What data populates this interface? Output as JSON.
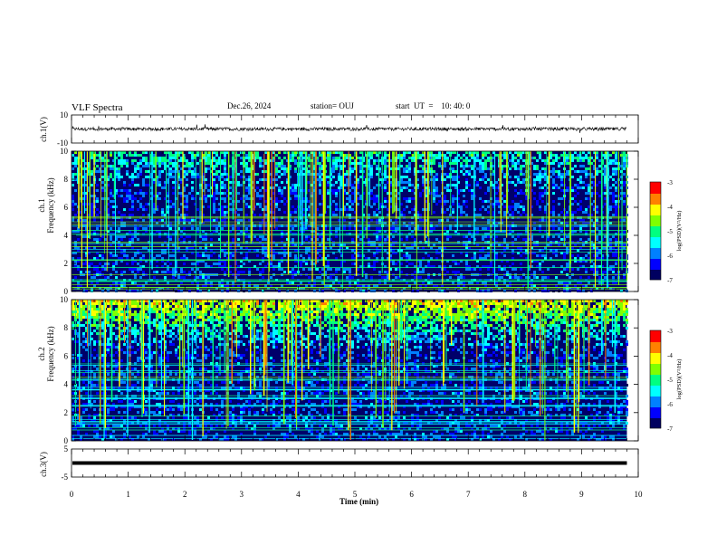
{
  "header": {
    "title": "VLF Spectra",
    "date": "Dec.26, 2024",
    "station": "station= OUJ",
    "start_ut": "start  UT  =    10: 40: 0"
  },
  "colors": {
    "colormap": [
      "#000060",
      "#0000ff",
      "#0080ff",
      "#00ffff",
      "#00ff80",
      "#80ff00",
      "#ffff00",
      "#ff8000",
      "#ff0000",
      "#ffffff"
    ]
  },
  "chart_data": [
    {
      "type": "line",
      "panel": "ch1-waveform",
      "ylabel": "ch.1(V)",
      "ylim": [
        -10,
        10
      ],
      "yticks": [
        "10",
        "-10"
      ],
      "x_range_min": [
        0,
        9.8
      ],
      "description_series": [
        {
          "name": "",
          "values_baseline": 0,
          "noise_amplitude_v": 1.5
        }
      ]
    },
    {
      "type": "heatmap",
      "panel": "ch1-spectrogram",
      "ylabel_line1": "ch.1",
      "ylabel_line2": "Frequency  (kHz)",
      "ylim": [
        0,
        10
      ],
      "yticks": [
        "0",
        "2",
        "4",
        "6",
        "8",
        "10"
      ],
      "x_range_min": [
        0,
        9.8
      ],
      "colorbar": {
        "label": "log(PSD)(V²/Hz)",
        "ticks": [
          "-3",
          "-4",
          "-5",
          "-6",
          "-7"
        ],
        "range": [
          -7,
          -3
        ]
      }
    },
    {
      "type": "heatmap",
      "panel": "ch2-spectrogram",
      "ylabel_line1": "ch.2",
      "ylabel_line2": "Frequency  (kHz)",
      "ylim": [
        0,
        10
      ],
      "yticks": [
        "0",
        "2",
        "4",
        "6",
        "8",
        "10"
      ],
      "x_range_min": [
        0,
        9.8
      ],
      "colorbar": {
        "label": "log(PSD)(V²/Hz)",
        "ticks": [
          "-3",
          "-4",
          "-5",
          "-6",
          "-7"
        ],
        "range": [
          -7,
          -3
        ]
      }
    },
    {
      "type": "line",
      "panel": "ch3-waveform",
      "ylabel": "ch.3(V)",
      "ylim": [
        -5,
        5
      ],
      "yticks": [
        "5",
        "-5"
      ],
      "x_range_min": [
        0,
        9.8
      ],
      "series": [
        {
          "name": "",
          "constant_value_v": 0
        }
      ]
    }
  ],
  "xaxis": {
    "label": "Time  (min)",
    "ticks": [
      "0",
      "1",
      "2",
      "3",
      "4",
      "5",
      "6",
      "7",
      "8",
      "9",
      "10"
    ],
    "xlim": [
      0,
      10
    ]
  }
}
